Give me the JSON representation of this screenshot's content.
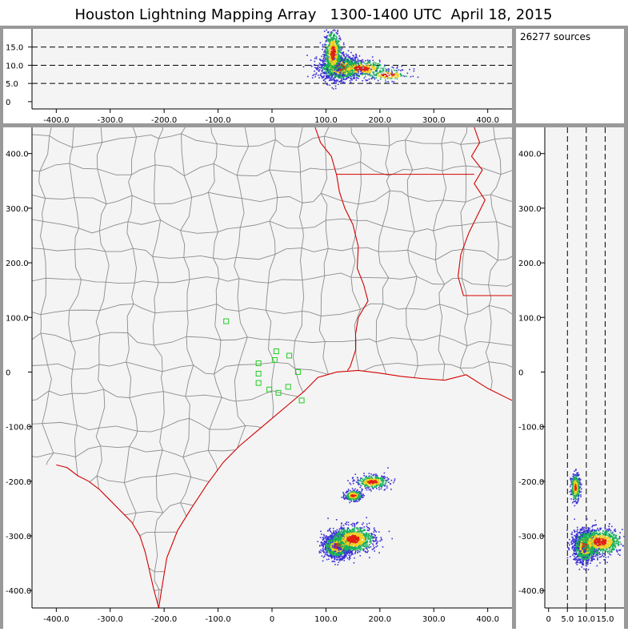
{
  "title": "Houston Lightning Mapping Array   1300-1400 UTC  April 18, 2015",
  "sources_label": "26277 sources",
  "colors": {
    "frame": "#999999",
    "panel_bg": "#f4f4f4",
    "county_line": "#8c8c8c",
    "state_line": "#d40000",
    "station": "#22cc22",
    "density_low": "#3b2fd6",
    "density_mid": "#18b05a",
    "density_high": "#f0d020",
    "density_peak": "#e02010"
  },
  "chart_data": [
    {
      "type": "scatter",
      "name": "altitude-vs-east-west",
      "xlabel": "",
      "ylabel": "",
      "xlim": [
        -445,
        445
      ],
      "ylim": [
        -2,
        20
      ],
      "x_ticks": [
        -400,
        -300,
        -200,
        -100,
        0,
        100,
        200,
        300,
        400
      ],
      "x_tick_labels": [
        "-400.0",
        "-300.0",
        "-200.0",
        "-100.0",
        "0",
        "100.0",
        "200.0",
        "300.0",
        "400.0"
      ],
      "y_ticks": [
        0,
        5,
        10,
        15
      ],
      "y_tick_labels": [
        "0",
        "5.0",
        "10.0",
        "15.0"
      ],
      "dashed_lines_y": [
        5,
        10,
        15
      ],
      "clusters": [
        {
          "x": 125,
          "y": 9.5,
          "sx": 18,
          "sy": 1.6,
          "weight": 0.55
        },
        {
          "x": 112,
          "y": 13.5,
          "sx": 8,
          "sy": 3.2,
          "weight": 0.25
        },
        {
          "x": 165,
          "y": 9.2,
          "sx": 25,
          "sy": 1.2,
          "weight": 0.15
        },
        {
          "x": 215,
          "y": 7.5,
          "sx": 20,
          "sy": 0.8,
          "weight": 0.05
        }
      ]
    },
    {
      "type": "scatter",
      "name": "plan-view",
      "xlabel": "",
      "ylabel": "",
      "xlim": [
        -445,
        445
      ],
      "ylim": [
        -432,
        448
      ],
      "x_ticks": [
        -400,
        -300,
        -200,
        -100,
        0,
        100,
        200,
        300,
        400
      ],
      "x_tick_labels": [
        "-400.0",
        "-300.0",
        "-200.0",
        "-100.0",
        "0",
        "100.0",
        "200.0",
        "300.0",
        "400.0"
      ],
      "y_ticks": [
        -400,
        -300,
        -200,
        -100,
        0,
        100,
        200,
        300,
        400
      ],
      "y_tick_labels": [
        "-400.0",
        "-300.0",
        "-200.0",
        "-100.0",
        "0",
        "100.0",
        "200.0",
        "300.0",
        "400.0"
      ],
      "clusters": [
        {
          "x": 120,
          "y": -318,
          "sx": 12,
          "sy": 10,
          "weight": 0.5
        },
        {
          "x": 150,
          "y": -305,
          "sx": 20,
          "sy": 12,
          "weight": 0.3
        },
        {
          "x": 185,
          "y": -200,
          "sx": 15,
          "sy": 6,
          "weight": 0.12
        },
        {
          "x": 150,
          "y": -225,
          "sx": 8,
          "sy": 5,
          "weight": 0.08
        }
      ],
      "stations": [
        {
          "x": -85,
          "y": 93
        },
        {
          "x": -25,
          "y": 16
        },
        {
          "x": -25,
          "y": -3
        },
        {
          "x": -25,
          "y": -20
        },
        {
          "x": -5,
          "y": -32
        },
        {
          "x": 5,
          "y": 22
        },
        {
          "x": 8,
          "y": 38
        },
        {
          "x": 12,
          "y": -38
        },
        {
          "x": 30,
          "y": -27
        },
        {
          "x": 32,
          "y": 30
        },
        {
          "x": 48,
          "y": 0
        },
        {
          "x": 55,
          "y": -52
        }
      ]
    },
    {
      "type": "scatter",
      "name": "north-south-vs-altitude",
      "xlabel": "",
      "ylabel": "",
      "xlim": [
        -1,
        20
      ],
      "ylim": [
        -432,
        448
      ],
      "x_ticks": [
        0,
        5,
        10,
        15
      ],
      "x_tick_labels": [
        "0",
        "5.0",
        "10.0",
        "15.0"
      ],
      "y_ticks": [
        -400,
        -300,
        -200,
        -100,
        0,
        100,
        200,
        300,
        400
      ],
      "y_tick_labels": [
        "-400.0",
        "-300.0",
        "-200.0",
        "-100.0",
        "0",
        "100.0",
        "200.0",
        "300.0",
        "400.0"
      ],
      "dashed_lines_x": [
        5,
        10,
        15
      ],
      "clusters": [
        {
          "x": 9.5,
          "y": -318,
          "sx": 1.4,
          "sy": 14,
          "weight": 0.55
        },
        {
          "x": 13.5,
          "y": -310,
          "sx": 3.0,
          "sy": 12,
          "weight": 0.3
        },
        {
          "x": 7.0,
          "y": -210,
          "sx": 0.6,
          "sy": 12,
          "weight": 0.15
        }
      ]
    }
  ]
}
